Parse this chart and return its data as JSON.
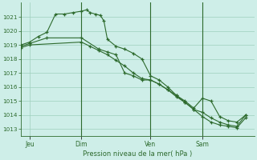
{
  "bg_color": "#ceeee8",
  "grid_color": "#9ecfbc",
  "line_color": "#2d6a2d",
  "ylabel_text": "Pression niveau de la mer( hPa )",
  "ylim": [
    1012.5,
    1022.0
  ],
  "yticks": [
    1013,
    1014,
    1015,
    1016,
    1017,
    1018,
    1019,
    1020,
    1021
  ],
  "day_labels": [
    "Jeu",
    "Dim",
    "Ven",
    "Sam"
  ],
  "day_positions": [
    0.5,
    3.5,
    7.5,
    10.5
  ],
  "day_vlines": [
    3.5,
    7.5,
    10.5
  ],
  "xlim": [
    0,
    13.5
  ],
  "series": [
    {
      "x": [
        0,
        0.5,
        1.0,
        1.5,
        2.0,
        2.5,
        3.0,
        3.5,
        3.8,
        4.0,
        4.3,
        4.6,
        4.8,
        5.0,
        5.5,
        6.0,
        6.5,
        7.0,
        7.5,
        8.0,
        8.5,
        9.0,
        9.5,
        10.0,
        10.5,
        11.0,
        11.5,
        12.0,
        12.5,
        13.0
      ],
      "y": [
        1019.0,
        1019.2,
        1019.6,
        1019.9,
        1021.2,
        1021.2,
        1021.3,
        1021.4,
        1021.5,
        1021.3,
        1021.2,
        1021.1,
        1020.7,
        1019.4,
        1018.9,
        1018.7,
        1018.4,
        1018.0,
        1016.8,
        1016.5,
        1016.0,
        1015.4,
        1015.0,
        1014.5,
        1015.2,
        1015.0,
        1013.9,
        1013.6,
        1013.5,
        1014.0
      ]
    },
    {
      "x": [
        0,
        0.5,
        1.5,
        3.5,
        4.5,
        5.0,
        5.5,
        6.0,
        6.5,
        7.0,
        7.5,
        8.0,
        8.5,
        9.0,
        9.5,
        10.0,
        10.5,
        11.0,
        11.5,
        12.0,
        12.5,
        13.0
      ],
      "y": [
        1018.9,
        1019.1,
        1019.5,
        1019.5,
        1018.7,
        1018.5,
        1018.3,
        1017.0,
        1016.8,
        1016.5,
        1016.5,
        1016.2,
        1015.8,
        1015.3,
        1014.9,
        1014.4,
        1014.2,
        1013.8,
        1013.5,
        1013.3,
        1013.2,
        1014.0
      ]
    },
    {
      "x": [
        0,
        0.5,
        3.5,
        4.0,
        4.5,
        5.0,
        5.5,
        6.0,
        6.5,
        7.0,
        7.5,
        8.0,
        8.5,
        9.0,
        9.5,
        10.0,
        10.5,
        11.0,
        11.5,
        12.0,
        12.5,
        13.0
      ],
      "y": [
        1018.8,
        1019.0,
        1019.2,
        1018.9,
        1018.6,
        1018.3,
        1017.9,
        1017.5,
        1017.0,
        1016.6,
        1016.5,
        1016.2,
        1015.8,
        1015.4,
        1014.9,
        1014.4,
        1013.9,
        1013.5,
        1013.3,
        1013.2,
        1013.1,
        1013.8
      ]
    }
  ]
}
